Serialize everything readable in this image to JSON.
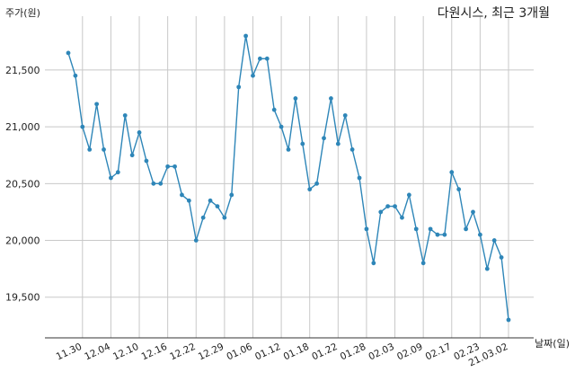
{
  "chart_data": {
    "type": "line",
    "title": "다원시스, 최근 3개월",
    "ylabel": "주가(원)",
    "xlabel": "날짜(일)",
    "ylim": [
      19200,
      21850
    ],
    "yticks": [
      19500,
      20000,
      20500,
      21000,
      21500
    ],
    "ytick_labels": [
      "19,500",
      "20,000",
      "20,500",
      "21,000",
      "21,500"
    ],
    "xticks": [
      "11.30",
      "12.04",
      "12.10",
      "12.16",
      "12.22",
      "12.29",
      "01.06",
      "01.12",
      "01.18",
      "01.22",
      "01.28",
      "02.03",
      "02.09",
      "02.17",
      "02.23",
      "21.03.02"
    ],
    "xtick_positions": [
      2,
      6,
      10,
      14,
      18,
      22,
      26,
      30,
      34,
      38,
      42,
      46,
      50,
      54,
      58,
      62
    ],
    "grid": true,
    "color": "#2e86b8",
    "values": [
      21650,
      21450,
      21000,
      20800,
      21200,
      20800,
      20550,
      20600,
      21100,
      20750,
      20950,
      20700,
      20500,
      20500,
      20650,
      20650,
      20400,
      20350,
      20000,
      20200,
      20350,
      20300,
      20200,
      20400,
      21350,
      21800,
      21450,
      21600,
      21600,
      21150,
      21000,
      20800,
      21250,
      20850,
      20450,
      20500,
      20900,
      21250,
      20850,
      21100,
      20800,
      20550,
      20100,
      19800,
      20250,
      20300,
      20300,
      20200,
      20400,
      20100,
      19800,
      20100,
      20050,
      20050,
      20600,
      20450,
      20100,
      20250,
      20050,
      19750,
      20000,
      19850,
      19300
    ]
  }
}
